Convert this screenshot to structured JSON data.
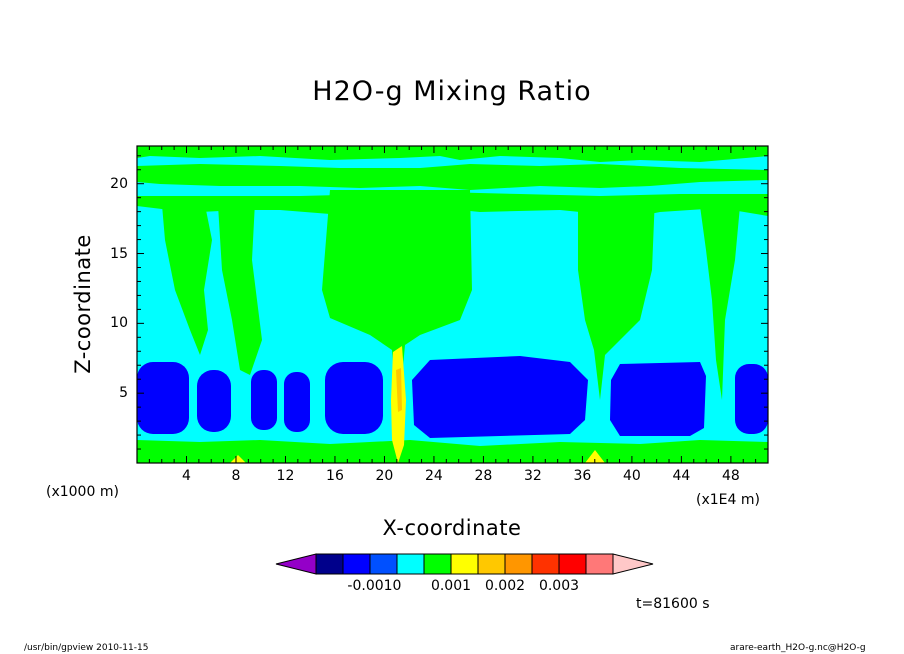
{
  "chart_data": {
    "type": "heatmap",
    "title": "H2O-g Mixing Ratio",
    "xlabel": "X-coordinate",
    "ylabel": "Z-coordinate",
    "x_unit_left": "(x1000 m)",
    "x_unit_right": "(x1E4 m)",
    "x_ticks": [
      "4",
      "8",
      "12",
      "16",
      "20",
      "24",
      "28",
      "32",
      "36",
      "40",
      "44",
      "48"
    ],
    "y_ticks": [
      "5",
      "10",
      "15",
      "20"
    ],
    "xlim": [
      0,
      51
    ],
    "ylim": [
      0,
      22.7
    ],
    "colorbar": {
      "colors": [
        "#9400c8",
        "#00008b",
        "#0000ff",
        "#0050ff",
        "#00ffff",
        "#00ff00",
        "#ffff00",
        "#ffc800",
        "#ff9600",
        "#ff3200",
        "#ff0000",
        "#ff7878",
        "#ffc8c8"
      ],
      "labels": [
        "-0.001",
        "0",
        "0.001",
        "0.002",
        "0.003"
      ]
    },
    "regions": {
      "background_color": "#00ffff",
      "green_color": "#00ff00",
      "blue_color": "#0000ff",
      "yellow_color": "#ffff00",
      "orange_color": "#ffc800"
    }
  },
  "annotations": {
    "time": "t=81600 s",
    "footer_left": "/usr/bin/gpview  2010-11-15",
    "footer_right": "arare-earth_H2O-g.nc@H2O-g"
  }
}
